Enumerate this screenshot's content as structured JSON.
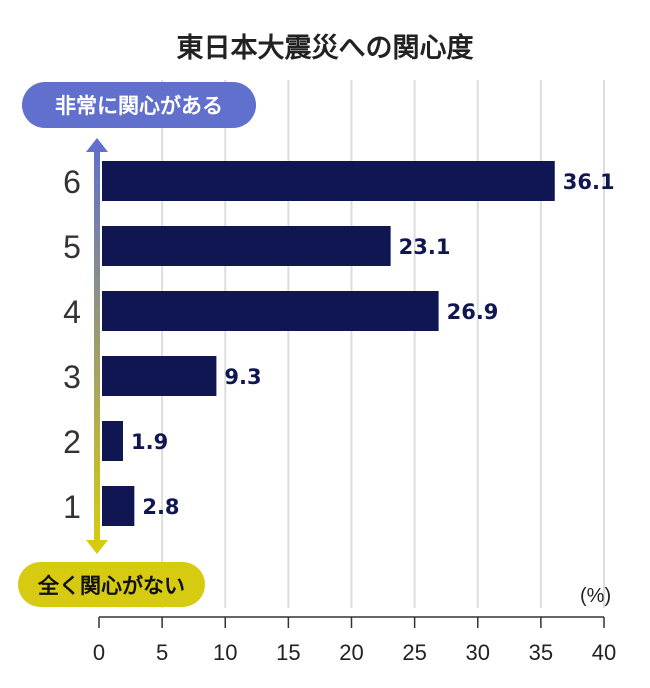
{
  "chart_data": {
    "type": "bar",
    "orientation": "horizontal",
    "title": "東日本大震災への関心度",
    "categories": [
      "6",
      "5",
      "4",
      "3",
      "2",
      "1"
    ],
    "values": [
      36.1,
      23.1,
      26.9,
      9.3,
      1.9,
      2.8
    ],
    "value_labels": [
      "36.1",
      "23.1",
      "26.9",
      "9.3",
      "1.9",
      "2.8"
    ],
    "xlabel": "",
    "unit_label": "(%)",
    "xlim": [
      0,
      40
    ],
    "xticks": [
      "0",
      "5",
      "10",
      "15",
      "20",
      "25",
      "30",
      "35",
      "40"
    ],
    "grid": true,
    "scale_top_label": "非常に関心がある",
    "scale_bottom_label": "全く関心がない",
    "colors": {
      "bar": "#0f1652",
      "top": "#6070cc",
      "bottom": "#d6cb10",
      "grid": "#dddddd"
    }
  }
}
